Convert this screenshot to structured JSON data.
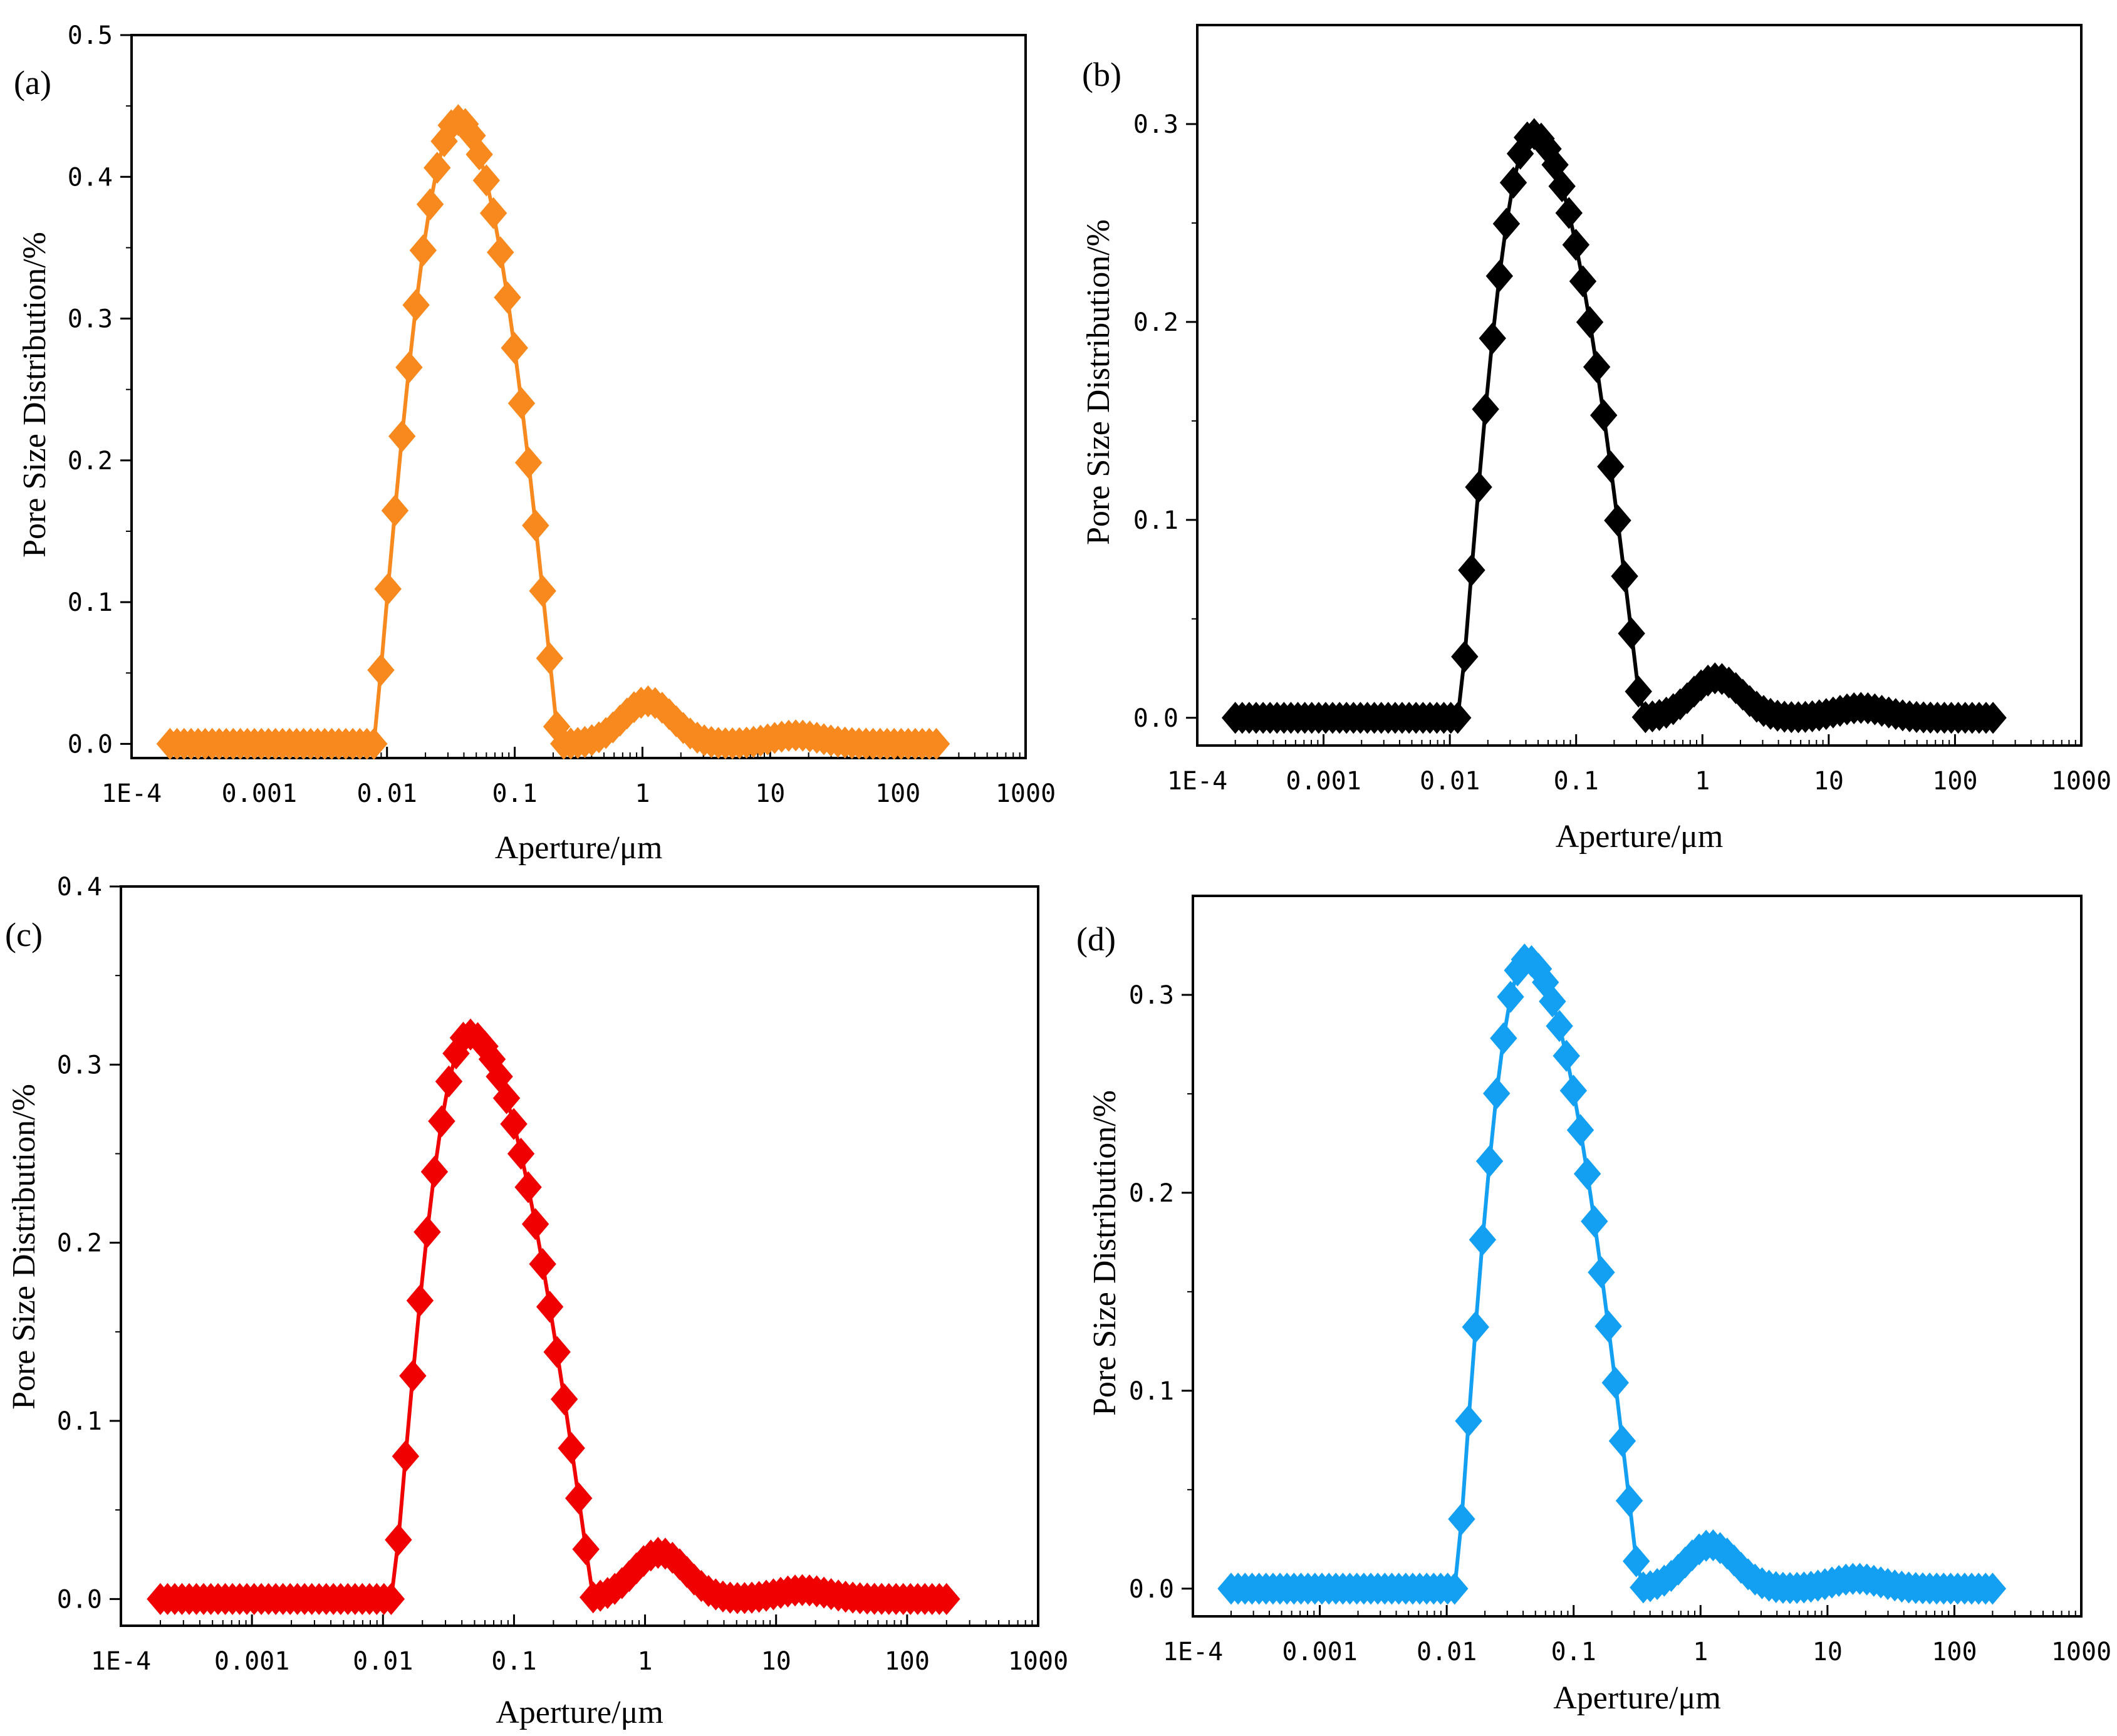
{
  "figure": {
    "description_panels": [
      "(a)",
      "(b)",
      "(c)",
      "(d)"
    ]
  },
  "chart_data": [
    {
      "type": "scatter-line",
      "panel_label": "(a)",
      "color": "#F7891E",
      "marker": "diamond",
      "xscale": "log",
      "xlim": [
        0.0001,
        1000
      ],
      "ylim": [
        -0.01,
        0.5
      ],
      "xticks": [
        0.0001,
        0.001,
        0.01,
        0.1,
        1,
        10,
        100,
        1000
      ],
      "xtick_labels": [
        "1E-4",
        "0.001",
        "0.01",
        "0.1",
        "1",
        "10",
        "100",
        "1000"
      ],
      "yticks": [
        0.0,
        0.1,
        0.2,
        0.3,
        0.4,
        0.5
      ],
      "ytick_labels": [
        "0.0",
        "0.1",
        "0.2",
        "0.3",
        "0.4",
        "0.5"
      ],
      "xlabel": "Aperture/μm",
      "ylabel": "Pore Size Distribution/%",
      "x_range": [
        0.0002,
        200
      ],
      "onset": 0.008,
      "peak_x": 0.036,
      "peak_y": 0.44,
      "trough_x": 0.22,
      "bumps": [
        {
          "x": 1.1,
          "y": 0.03
        },
        {
          "x": 16,
          "y": 0.006
        }
      ],
      "legend": "none"
    },
    {
      "type": "scatter-line",
      "panel_label": "(b)",
      "color": "#000000",
      "marker": "diamond",
      "xscale": "log",
      "xlim": [
        0.0001,
        1000
      ],
      "ylim": [
        -0.014,
        0.35
      ],
      "xticks": [
        0.0001,
        0.001,
        0.01,
        0.1,
        1,
        10,
        100,
        1000
      ],
      "xtick_labels": [
        "1E-4",
        "0.001",
        "0.01",
        "0.1",
        "1",
        "10",
        "100",
        "1000"
      ],
      "yticks": [
        0.0,
        0.1,
        0.2,
        0.3
      ],
      "ytick_labels": [
        "0.0",
        "0.1",
        "0.2",
        "0.3"
      ],
      "xlabel": "Aperture/μm",
      "ylabel": "Pore Size Distribution/%",
      "x_range": [
        0.0002,
        200
      ],
      "onset": 0.012,
      "peak_x": 0.045,
      "peak_y": 0.295,
      "trough_x": 0.33,
      "bumps": [
        {
          "x": 1.3,
          "y": 0.02
        },
        {
          "x": 18,
          "y": 0.005
        }
      ],
      "legend": "none"
    },
    {
      "type": "scatter-line",
      "panel_label": "(c)",
      "color": "#F00000",
      "marker": "diamond",
      "xscale": "log",
      "xlim": [
        0.0001,
        1000
      ],
      "ylim": [
        -0.015,
        0.4
      ],
      "xticks": [
        0.0001,
        0.001,
        0.01,
        0.1,
        1,
        10,
        100,
        1000
      ],
      "xtick_labels": [
        "1E-4",
        "0.001",
        "0.01",
        "0.1",
        "1",
        "10",
        "100",
        "1000"
      ],
      "yticks": [
        0.0,
        0.1,
        0.2,
        0.3,
        0.4
      ],
      "ytick_labels": [
        "0.0",
        "0.1",
        "0.2",
        "0.3",
        "0.4"
      ],
      "xlabel": "Aperture/μm",
      "ylabel": "Pore Size Distribution/%",
      "x_range": [
        0.0002,
        200
      ],
      "onset": 0.012,
      "peak_x": 0.045,
      "peak_y": 0.317,
      "trough_x": 0.4,
      "bumps": [
        {
          "x": 1.3,
          "y": 0.026
        },
        {
          "x": 16,
          "y": 0.005
        }
      ],
      "legend": "none"
    },
    {
      "type": "scatter-line",
      "panel_label": "(d)",
      "color": "#14A0F2",
      "marker": "diamond",
      "xscale": "log",
      "xlim": [
        0.0001,
        1000
      ],
      "ylim": [
        -0.014,
        0.35
      ],
      "xticks": [
        0.0001,
        0.001,
        0.01,
        0.1,
        1,
        10,
        100,
        1000
      ],
      "xtick_labels": [
        "1E-4",
        "0.001",
        "0.01",
        "0.1",
        "1",
        "10",
        "100",
        "1000"
      ],
      "yticks": [
        0.0,
        0.1,
        0.2,
        0.3
      ],
      "ytick_labels": [
        "0.0",
        "0.1",
        "0.2",
        "0.3"
      ],
      "xlabel": "Aperture/μm",
      "ylabel": "Pore Size Distribution/%",
      "x_range": [
        0.0002,
        200
      ],
      "onset": 0.012,
      "peak_x": 0.042,
      "peak_y": 0.318,
      "trough_x": 0.33,
      "bumps": [
        {
          "x": 1.2,
          "y": 0.022
        },
        {
          "x": 17,
          "y": 0.005
        }
      ],
      "legend": "none"
    }
  ]
}
